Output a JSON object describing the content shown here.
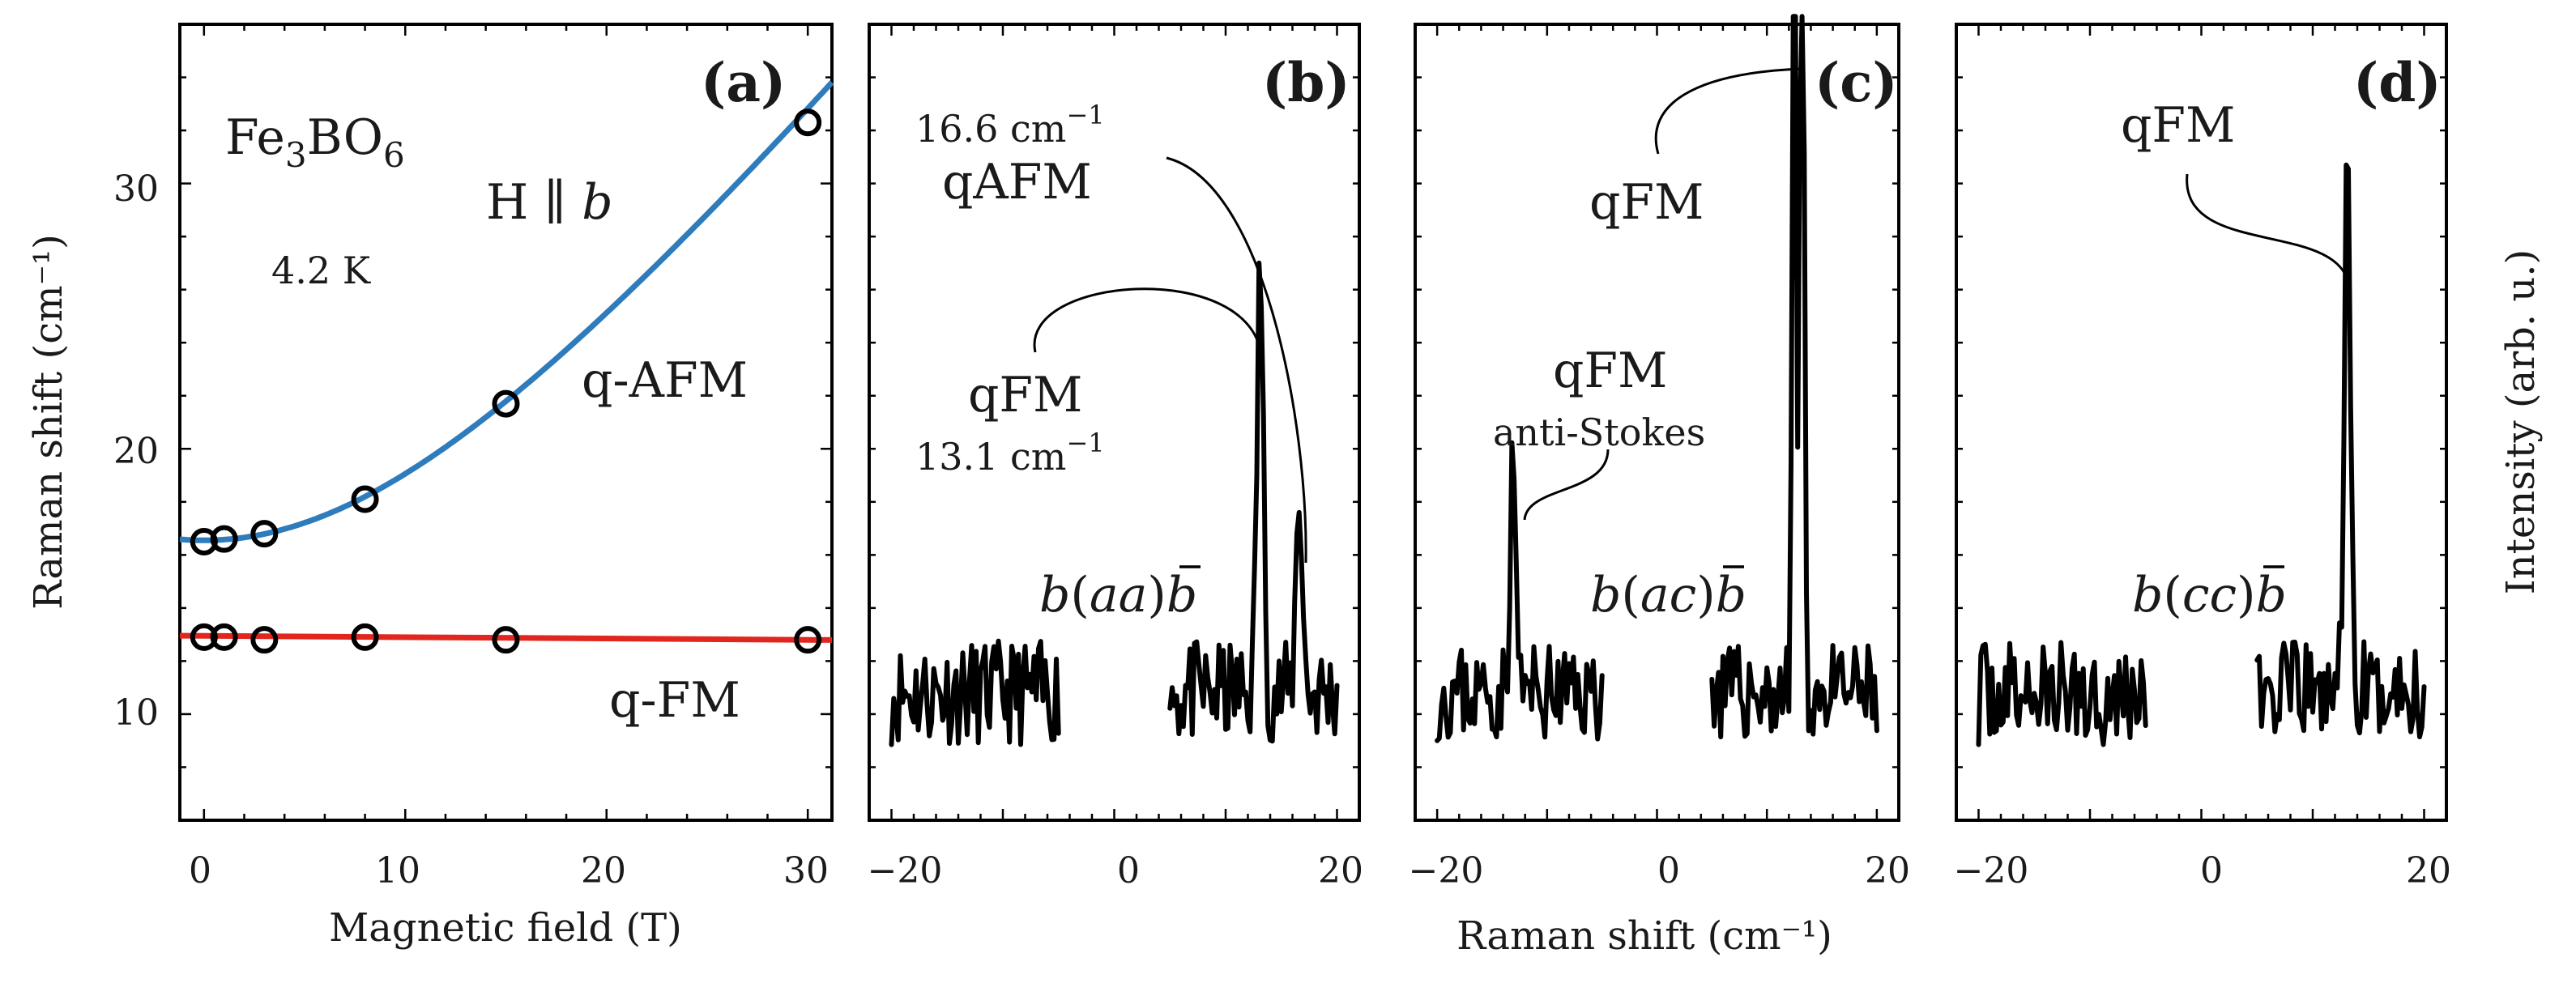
{
  "chart_data": [
    {
      "panel": "(a)",
      "type": "scatter",
      "xlabel": "Magnetic field (T)",
      "ylabel": "Raman shift (cm⁻¹)",
      "xlim": [
        -1.2,
        31.2
      ],
      "ylim": [
        6,
        36
      ],
      "x_ticks": [
        "0",
        "10",
        "20",
        "30"
      ],
      "y_ticks": [
        "10",
        "20",
        "30"
      ],
      "series": [
        {
          "name": "q-AFM",
          "color": "#2f7cbc",
          "x": [
            0,
            1,
            3,
            8,
            15,
            30
          ],
          "values": [
            16.5,
            16.6,
            16.8,
            18.1,
            21.7,
            32.3
          ],
          "fit": {
            "form": "sqrt(a^2+(b*B)^2)",
            "a": 16.55,
            "b": 0.945
          }
        },
        {
          "name": "q-FM",
          "color": "#e0261f",
          "x": [
            0,
            1,
            3,
            8,
            15,
            30
          ],
          "values": [
            12.9,
            12.9,
            12.8,
            12.9,
            12.8,
            12.8
          ],
          "fit": {
            "form": "linear",
            "y0": 12.95,
            "y30": 12.8
          }
        }
      ],
      "annotations": {
        "compound": "Fe₃BO₆",
        "compound_base": "Fe",
        "compound_sub1": "3",
        "compound_mid": "BO",
        "compound_sub2": "6",
        "field": "H ∥ b",
        "field_prefix": "H ∥ ",
        "field_var": "b",
        "temperature": "4.2 K",
        "afm_label": "q-AFM",
        "fm_label": "q-FM"
      }
    },
    {
      "panel": "(b)",
      "type": "line",
      "xlabel": "Raman shift (cm⁻¹)",
      "ylabel": "Intensity (arb. u.)",
      "xlim": [
        -22,
        22
      ],
      "ylim": [
        0,
        100
      ],
      "x_ticks": [
        "−20",
        "0",
        "20"
      ],
      "geometry": "b(aa)b̄",
      "geometry_parts": [
        "b",
        "(",
        "aa",
        ")",
        "b"
      ],
      "annotations": [
        "16.6 cm⁻¹",
        "qAFM",
        "qFM",
        "13.1 cm⁻¹"
      ],
      "ann_parts": {
        "afm_value": "16.6 cm",
        "fm_value": "13.1 cm",
        "sup": "−1"
      },
      "baseline": 16,
      "noise_amp": 13,
      "peaks": [
        {
          "x": 13.1,
          "height": 54,
          "width": 0.28
        },
        {
          "x": 16.6,
          "height": 26,
          "width": 0.28
        }
      ],
      "seed": 11
    },
    {
      "panel": "(c)",
      "type": "line",
      "xlim": [
        -22,
        22
      ],
      "ylim": [
        0,
        100
      ],
      "x_ticks": [
        "−20",
        "0",
        "20"
      ],
      "geometry": "b(ac)b̄",
      "geometry_parts": [
        "b",
        "(",
        "ac",
        ")",
        "b"
      ],
      "annotations": [
        "qFM",
        "qFM",
        "anti-Stokes"
      ],
      "baseline": 16,
      "noise_amp": 12,
      "peaks": [
        {
          "x": -13.1,
          "height": 28,
          "width": 0.28
        },
        {
          "x": 12.5,
          "height": 150,
          "width": 0.16
        },
        {
          "x": 13.2,
          "height": 150,
          "width": 0.16
        }
      ],
      "seed": 23
    },
    {
      "panel": "(d)",
      "type": "line",
      "xlim": [
        -22,
        22
      ],
      "ylim": [
        0,
        100
      ],
      "x_ticks": [
        "−20",
        "0",
        "20"
      ],
      "geometry": "b(cc)b̄",
      "geometry_parts": [
        "b",
        "(",
        "cc",
        ")",
        "b"
      ],
      "annotations": [
        "qFM"
      ],
      "baseline": 16,
      "noise_amp": 13,
      "peaks": [
        {
          "x": 13.1,
          "height": 65,
          "width": 0.28
        }
      ],
      "seed": 37
    }
  ]
}
